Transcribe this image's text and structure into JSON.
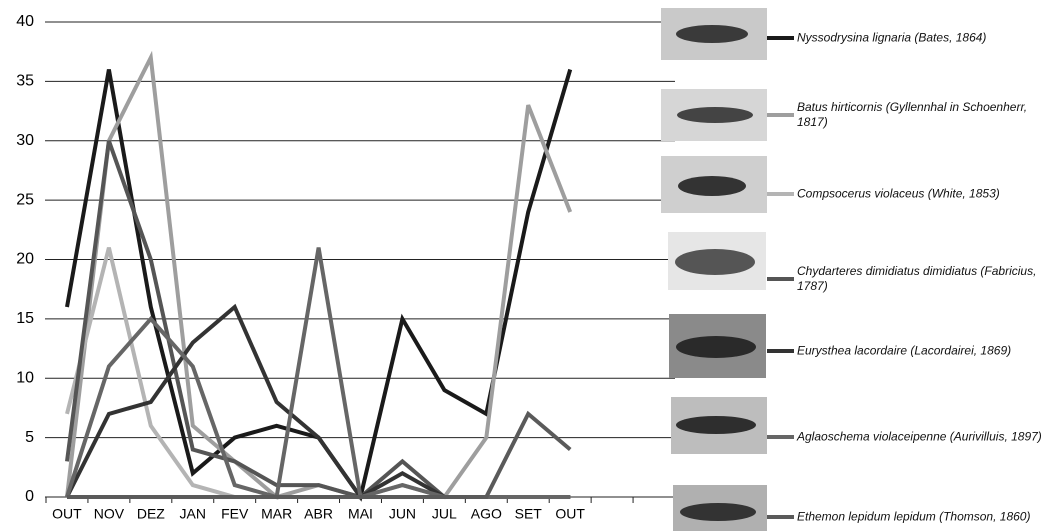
{
  "chart_data": {
    "type": "line",
    "categories": [
      "OUT",
      "NOV",
      "DEZ",
      "JAN",
      "FEV",
      "MAR",
      "ABR",
      "MAI",
      "JUN",
      "JUL",
      "AGO",
      "SET",
      "OUT",
      null,
      null
    ],
    "ylim": [
      0,
      40
    ],
    "yticks": [
      0,
      5,
      10,
      15,
      20,
      25,
      30,
      35,
      40
    ],
    "grid": true,
    "series": [
      {
        "name": "Nyssodrysina lignaria  (Bates, 1864)",
        "color": "#1a1a1a",
        "values": [
          16,
          36,
          16,
          2,
          5,
          6,
          5,
          0,
          15,
          9,
          7,
          24,
          36,
          null,
          null
        ]
      },
      {
        "name": "Batus hirticornis (Gyllennhal in Schoenherr, 1817)",
        "color": "#9e9e9e",
        "values": [
          0,
          30,
          37,
          6,
          3,
          0,
          1,
          0,
          1,
          0,
          5,
          33,
          24,
          null,
          null
        ]
      },
      {
        "name": "Compsocerus violaceus (White, 1853)",
        "color": "#b4b4b4",
        "values": [
          7,
          21,
          6,
          1,
          0,
          0,
          0,
          0,
          0,
          0,
          0,
          0,
          0,
          null,
          null
        ]
      },
      {
        "name": "Chydarteres dimidiatus dimidiatus (Fabricius, 1787)",
        "color": "#555555",
        "values": [
          3,
          30,
          20,
          4,
          3,
          1,
          1,
          0,
          3,
          0,
          0,
          0,
          0,
          null,
          null
        ]
      },
      {
        "name": "Eurysthea  lacordaire (Lacordairei, 1869)",
        "color": "#333333",
        "values": [
          0,
          7,
          8,
          13,
          16,
          8,
          5,
          0,
          2,
          0,
          0,
          0,
          0,
          null,
          null
        ]
      },
      {
        "name": "Aglaoschema violaceipenne (Aurivilluis, 1897)",
        "color": "#666666",
        "values": [
          0,
          11,
          15,
          11,
          1,
          0,
          21,
          0,
          1,
          0,
          0,
          0,
          0,
          null,
          null
        ]
      },
      {
        "name": "Ethemon lepidum lepidum  (Thomson, 1860)",
        "color": "#5a5a5a",
        "values": [
          0,
          0,
          0,
          0,
          0,
          0,
          0,
          0,
          0,
          0,
          0,
          7,
          4,
          null,
          null
        ]
      }
    ]
  }
}
